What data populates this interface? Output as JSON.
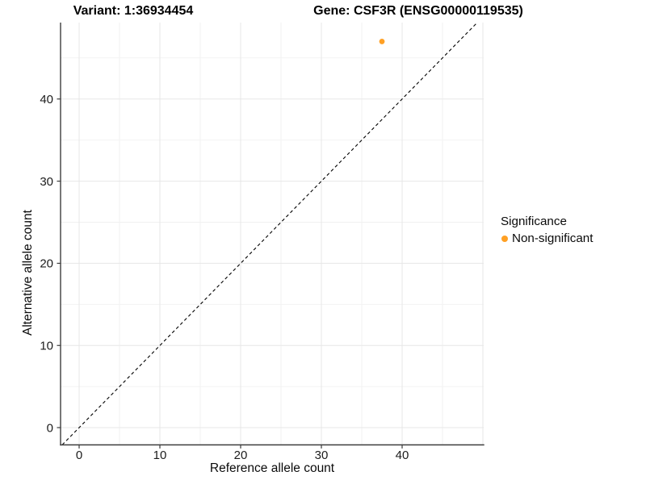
{
  "header": {
    "variant_title": "Variant: 1:36934454",
    "gene_title": "Gene: CSF3R (ENSG00000119535)"
  },
  "legend": {
    "title": "Significance",
    "items": [
      {
        "label": "Non-significant",
        "color": "#FFA024"
      }
    ]
  },
  "chart_data": {
    "type": "scatter",
    "title": "Variant: 1:36934454   Gene: CSF3R (ENSG00000119535)",
    "xlabel": "Reference allele count",
    "ylabel": "Alternative allele count",
    "x_ticks": [
      0,
      10,
      20,
      30,
      40
    ],
    "y_ticks": [
      0,
      10,
      20,
      30,
      40
    ],
    "x_grid_major": [
      0,
      10,
      20,
      30,
      40,
      50
    ],
    "x_grid_minor": [
      5,
      15,
      25,
      35,
      45
    ],
    "y_grid_major": [
      0,
      10,
      20,
      30,
      40
    ],
    "y_grid_minor": [
      5,
      15,
      25,
      35,
      45
    ],
    "xlim": [
      -2.3,
      50.1
    ],
    "ylim": [
      -2.1,
      49.3
    ],
    "grid": true,
    "legend_position": "right",
    "reference_line": {
      "type": "identity y=x",
      "style": "dashed",
      "color": "#000000"
    },
    "series": [
      {
        "name": "Non-significant",
        "color": "#FFA024",
        "points": [
          {
            "x": 37.5,
            "y": 47
          }
        ]
      }
    ]
  },
  "colors": {
    "point_orange": "#FFA024",
    "grid_major": "#E7E7E7",
    "grid_minor": "#F1F1F1",
    "axis_line": "#3D3D3D",
    "tick_text": "#1c1c1c"
  }
}
